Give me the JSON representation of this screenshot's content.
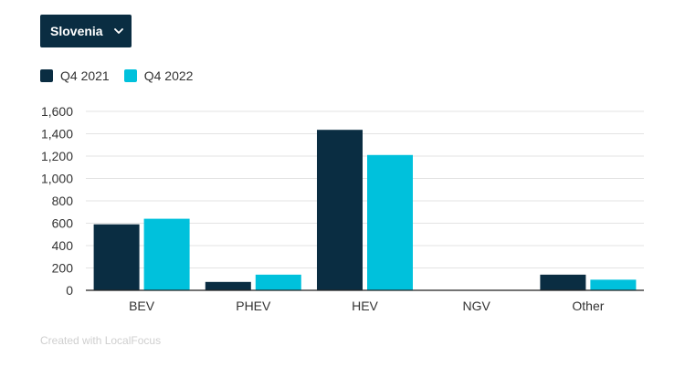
{
  "filter": {
    "selected": "Slovenia"
  },
  "colors": {
    "dark": "#0a2d42",
    "light": "#00c1dc",
    "grid": "#e3e3e3",
    "axis": "#333333"
  },
  "footer": {
    "text": "Created with LocalFocus"
  },
  "chart_data": {
    "type": "bar",
    "categories": [
      "BEV",
      "PHEV",
      "HEV",
      "NGV",
      "Other"
    ],
    "series": [
      {
        "name": "Q4 2021",
        "values": [
          590,
          75,
          1435,
          0,
          140
        ],
        "color": "#0a2d42"
      },
      {
        "name": "Q4 2022",
        "values": [
          640,
          140,
          1210,
          0,
          95
        ],
        "color": "#00c1dc"
      }
    ],
    "yticks": [
      0,
      200,
      400,
      600,
      800,
      1000,
      1200,
      1400,
      1600
    ],
    "ytick_labels": [
      "0",
      "200",
      "400",
      "600",
      "800",
      "1,000",
      "1,200",
      "1,400",
      "1,600"
    ],
    "ylim": [
      0,
      1600
    ],
    "title": "",
    "xlabel": "",
    "ylabel": "",
    "grid": true,
    "legend_position": "top-left"
  }
}
